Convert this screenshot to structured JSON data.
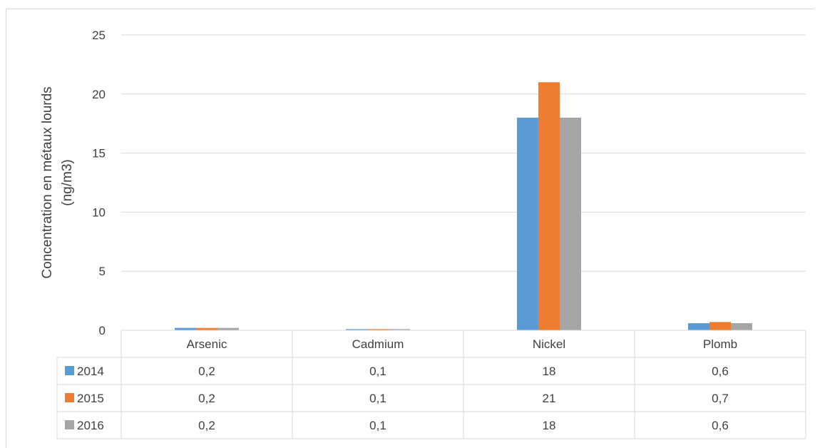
{
  "chart_data": {
    "type": "bar",
    "title": "",
    "xlabel": "",
    "ylabel": "Concentration en métaux lourds (ng/m3)",
    "ylabel_lines": [
      "Concentration en métaux lourds",
      "(ng/m3)"
    ],
    "ylim": [
      0,
      25
    ],
    "yticks": [
      0,
      5,
      10,
      15,
      20,
      25
    ],
    "grid": true,
    "legend": "data-table",
    "categories": [
      "Arsenic",
      "Cadmium",
      "Nickel",
      "Plomb"
    ],
    "series": [
      {
        "name": "2014",
        "color": "#5b9bd5",
        "values": [
          0.2,
          0.1,
          18,
          0.6
        ],
        "labels": [
          "0,2",
          "0,1",
          "18",
          "0,6"
        ]
      },
      {
        "name": "2015",
        "color": "#ed7d31",
        "values": [
          0.2,
          0.1,
          21,
          0.7
        ],
        "labels": [
          "0,2",
          "0,1",
          "21",
          "0,7"
        ]
      },
      {
        "name": "2016",
        "color": "#a5a5a5",
        "values": [
          0.2,
          0.1,
          18,
          0.6
        ],
        "labels": [
          "0,2",
          "0,1",
          "18",
          "0,6"
        ]
      }
    ]
  }
}
